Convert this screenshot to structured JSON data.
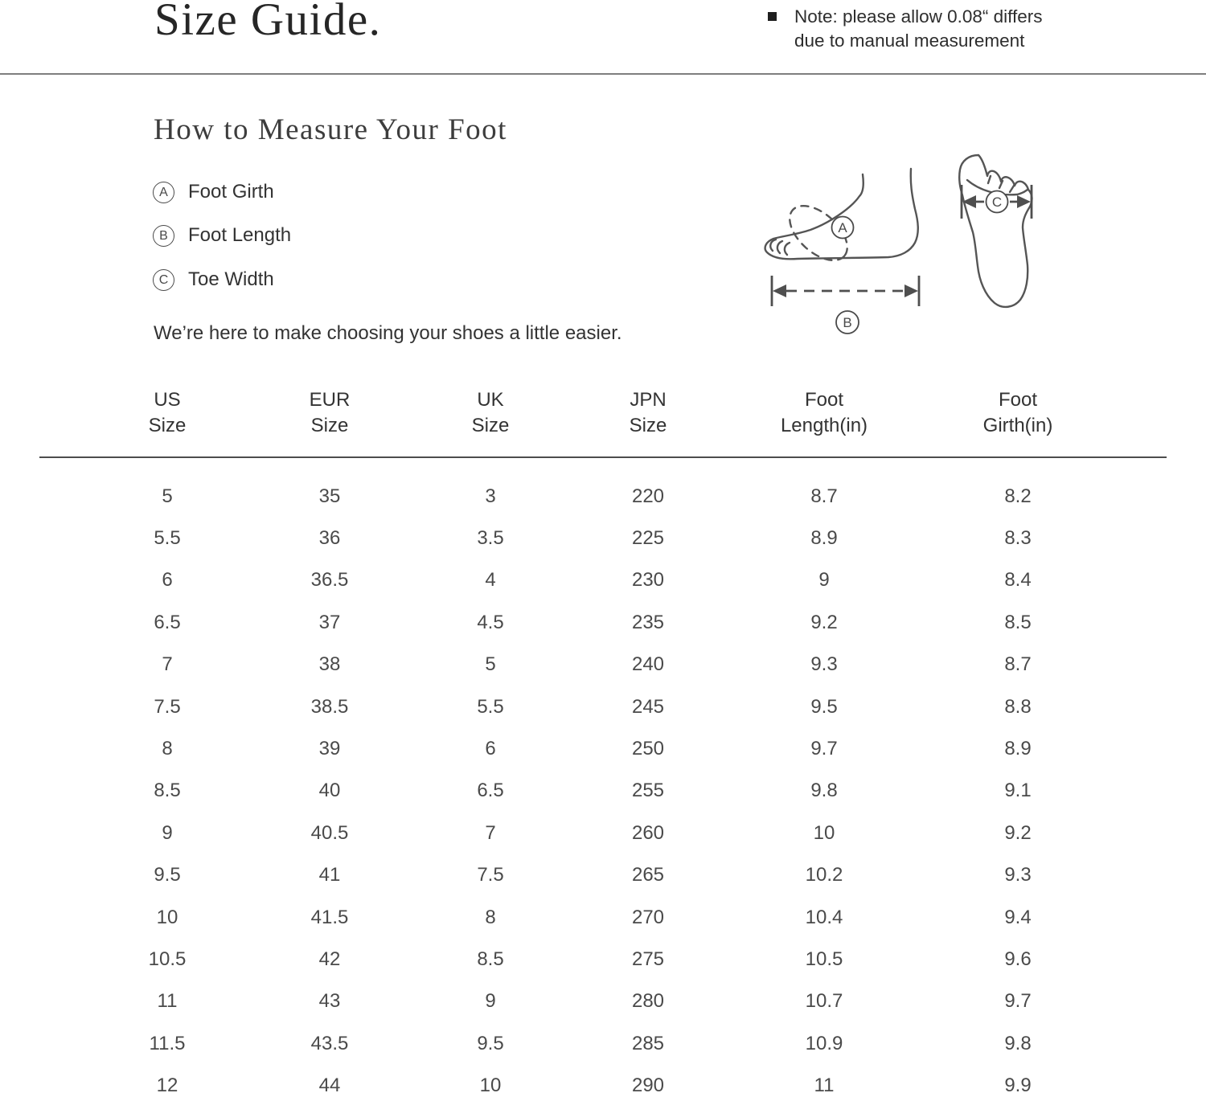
{
  "header": {
    "title": "Size Guide.",
    "note_line1": "Note: please allow 0.08“ differs",
    "note_line2": "due to manual measurement"
  },
  "measure": {
    "heading": "How to Measure Your Foot",
    "legend": [
      {
        "letter": "A",
        "label": "Foot Girth"
      },
      {
        "letter": "B",
        "label": "Foot Length"
      },
      {
        "letter": "C",
        "label": "Toe Width"
      }
    ],
    "tagline": "We’re here to make choosing your shoes a little easier."
  },
  "diagram": {
    "girth_label": "A",
    "length_label": "B",
    "width_label": "C"
  },
  "size_table": {
    "columns": [
      {
        "line1": "US",
        "line2": "Size"
      },
      {
        "line1": "EUR",
        "line2": "Size"
      },
      {
        "line1": "UK",
        "line2": "Size"
      },
      {
        "line1": "JPN",
        "line2": "Size"
      },
      {
        "line1": "Foot",
        "line2": "Length(in)"
      },
      {
        "line1": "Foot",
        "line2": "Girth(in)"
      }
    ],
    "rows": [
      [
        "5",
        "35",
        "3",
        "220",
        "8.7",
        "8.2"
      ],
      [
        "5.5",
        "36",
        "3.5",
        "225",
        "8.9",
        "8.3"
      ],
      [
        "6",
        "36.5",
        "4",
        "230",
        "9",
        "8.4"
      ],
      [
        "6.5",
        "37",
        "4.5",
        "235",
        "9.2",
        "8.5"
      ],
      [
        "7",
        "38",
        "5",
        "240",
        "9.3",
        "8.7"
      ],
      [
        "7.5",
        "38.5",
        "5.5",
        "245",
        "9.5",
        "8.8"
      ],
      [
        "8",
        "39",
        "6",
        "250",
        "9.7",
        "8.9"
      ],
      [
        "8.5",
        "40",
        "6.5",
        "255",
        "9.8",
        "9.1"
      ],
      [
        "9",
        "40.5",
        "7",
        "260",
        "10",
        "9.2"
      ],
      [
        "9.5",
        "41",
        "7.5",
        "265",
        "10.2",
        "9.3"
      ],
      [
        "10",
        "41.5",
        "8",
        "270",
        "10.4",
        "9.4"
      ],
      [
        "10.5",
        "42",
        "8.5",
        "275",
        "10.5",
        "9.6"
      ],
      [
        "11",
        "43",
        "9",
        "280",
        "10.7",
        "9.7"
      ],
      [
        "11.5",
        "43.5",
        "9.5",
        "285",
        "10.9",
        "9.8"
      ],
      [
        "12",
        "44",
        "10",
        "290",
        "11",
        "9.9"
      ]
    ]
  }
}
